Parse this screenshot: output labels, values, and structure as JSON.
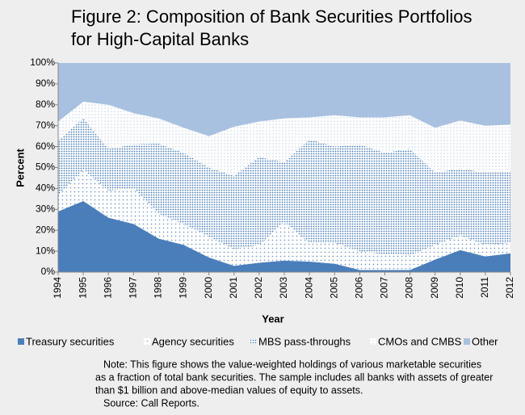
{
  "chart_data": {
    "type": "stacked_area",
    "title": [
      "Figure 2:  Composition of Bank Securities Portfolios",
      "for High-Capital Banks"
    ],
    "x_label": "Year",
    "y_label": "Percent",
    "categories": [
      "1994",
      "1995",
      "1996",
      "1997",
      "1998",
      "1999",
      "2000",
      "2001",
      "2002",
      "2003",
      "2004",
      "2005",
      "2006",
      "2007",
      "2008",
      "2009",
      "2010",
      "2011",
      "2012"
    ],
    "series": [
      {
        "name": "Treasury securities",
        "color": "#4a7ebb",
        "pattern": "solid",
        "values": [
          29,
          34,
          26,
          23,
          16,
          13,
          7,
          3,
          4.5,
          5.5,
          5,
          4,
          1,
          1,
          1,
          6,
          10.5,
          7.5,
          9
        ]
      },
      {
        "name": "Agency securities",
        "color": "#7da3d4",
        "pattern": "sparse-dots",
        "values": [
          8,
          15,
          13,
          17,
          12,
          10,
          10,
          8,
          8.5,
          18.5,
          9,
          10,
          9,
          7.5,
          7,
          7,
          7,
          5.5,
          5
        ]
      },
      {
        "name": "MBS pass-throughs",
        "color": "#4a7ebb",
        "pattern": "dense-dots",
        "values": [
          26,
          24.5,
          20,
          21,
          33.5,
          34,
          33,
          35,
          42,
          28.5,
          49.5,
          46,
          51,
          48.5,
          51,
          34.5,
          32,
          34.5,
          34
        ]
      },
      {
        "name": "CMOs and CMBS",
        "color": "#a6bfdf",
        "pattern": "fine-dots",
        "values": [
          9,
          8,
          21,
          15,
          12,
          12,
          15,
          23.5,
          17,
          21,
          10.5,
          15,
          13,
          17,
          16,
          21.5,
          23,
          22.5,
          22.5
        ]
      },
      {
        "name": "Other",
        "color": "#a9c1e0",
        "pattern": "solid",
        "values": [
          28,
          18.5,
          20,
          24,
          26.5,
          31,
          35,
          30.5,
          28,
          26.5,
          26,
          25,
          26,
          26,
          25,
          31,
          27.5,
          30,
          29.5
        ]
      }
    ],
    "ylim": [
      0,
      100
    ],
    "yticks": [
      {
        "value": 0,
        "label": "0%"
      },
      {
        "value": 10,
        "label": "10%"
      },
      {
        "value": 20,
        "label": "20%"
      },
      {
        "value": 30,
        "label": "30%"
      },
      {
        "value": 40,
        "label": "40%"
      },
      {
        "value": 50,
        "label": "50%"
      },
      {
        "value": 60,
        "label": "60%"
      },
      {
        "value": 70,
        "label": "70%"
      },
      {
        "value": 80,
        "label": "80%"
      },
      {
        "value": 90,
        "label": "90%"
      },
      {
        "value": 100,
        "label": "100%"
      }
    ],
    "grid": false,
    "legend": "bottom",
    "note": [
      "Note:  This figure shows the value-weighted holdings of various marketable securities",
      "as a fraction of total bank securities.  The sample includes all banks with assets of greater",
      "than $1 billion and above-median values of equity to assets.",
      "Source:  Call Reports."
    ]
  }
}
